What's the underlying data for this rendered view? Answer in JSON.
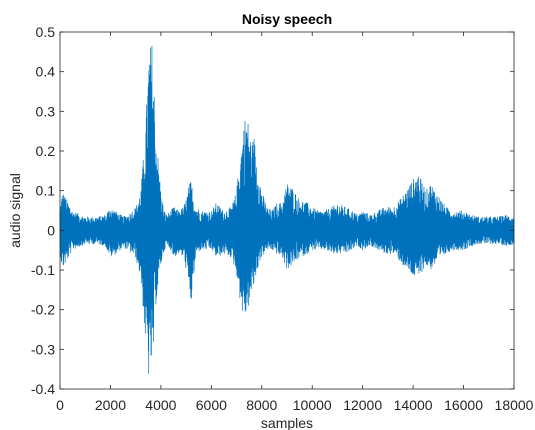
{
  "chart_data": {
    "type": "line",
    "title": "Noisy speech",
    "xlabel": "samples",
    "ylabel": "audio signal",
    "xlim": [
      0,
      18000
    ],
    "ylim": [
      -0.4,
      0.5
    ],
    "grid": false,
    "x_ticks": [
      0,
      2000,
      4000,
      6000,
      8000,
      10000,
      12000,
      14000,
      16000,
      18000
    ],
    "x_tick_labels": [
      "0",
      "2000",
      "4000",
      "6000",
      "8000",
      "10000",
      "12000",
      "14000",
      "16000",
      "18000"
    ],
    "y_ticks": [
      -0.4,
      -0.3,
      -0.2,
      -0.1,
      0,
      0.1,
      0.2,
      0.3,
      0.4,
      0.5
    ],
    "y_tick_labels": [
      "-0.4",
      "-0.3",
      "-0.2",
      "-0.1",
      "0",
      "0.1",
      "0.2",
      "0.3",
      "0.4",
      "0.5"
    ],
    "series_color": "#0072BD",
    "envelope": {
      "x": [
        0,
        100,
        500,
        1000,
        1500,
        1800,
        2000,
        2200,
        2500,
        2700,
        3000,
        3200,
        3300,
        3400,
        3500,
        3550,
        3600,
        3650,
        3700,
        3750,
        3800,
        3900,
        4000,
        4100,
        4200,
        4400,
        4500,
        4700,
        4900,
        5000,
        5100,
        5200,
        5300,
        5400,
        5600,
        5800,
        6000,
        6200,
        6500,
        6800,
        7000,
        7100,
        7200,
        7300,
        7400,
        7500,
        7600,
        7700,
        7800,
        7900,
        8000,
        8100,
        8200,
        8400,
        8600,
        8800,
        9000,
        9200,
        9500,
        9800,
        10000,
        10200,
        10500,
        10800,
        11000,
        11300,
        11600,
        11800,
        12000,
        12300,
        12600,
        12900,
        13200,
        13500,
        13700,
        13900,
        14000,
        14100,
        14200,
        14300,
        14400,
        14500,
        14700,
        15000,
        15300,
        15600,
        16000,
        16300,
        16600,
        17000,
        17400,
        17700,
        18000
      ],
      "upper": [
        0.06,
        0.1,
        0.05,
        0.035,
        0.035,
        0.04,
        0.06,
        0.05,
        0.035,
        0.04,
        0.06,
        0.1,
        0.18,
        0.27,
        0.42,
        0.49,
        0.46,
        0.48,
        0.42,
        0.34,
        0.25,
        0.18,
        0.1,
        0.06,
        0.04,
        0.05,
        0.06,
        0.05,
        0.06,
        0.08,
        0.11,
        0.13,
        0.08,
        0.06,
        0.05,
        0.05,
        0.05,
        0.07,
        0.05,
        0.06,
        0.1,
        0.17,
        0.22,
        0.28,
        0.3,
        0.26,
        0.22,
        0.24,
        0.18,
        0.14,
        0.1,
        0.08,
        0.06,
        0.05,
        0.07,
        0.07,
        0.12,
        0.11,
        0.08,
        0.07,
        0.06,
        0.05,
        0.05,
        0.06,
        0.07,
        0.06,
        0.05,
        0.04,
        0.05,
        0.04,
        0.05,
        0.06,
        0.06,
        0.08,
        0.1,
        0.12,
        0.13,
        0.14,
        0.15,
        0.13,
        0.12,
        0.1,
        0.12,
        0.09,
        0.06,
        0.05,
        0.05,
        0.04,
        0.035,
        0.035,
        0.035,
        0.04,
        0.035
      ],
      "lower": [
        -0.06,
        -0.1,
        -0.05,
        -0.035,
        -0.035,
        -0.04,
        -0.07,
        -0.06,
        -0.045,
        -0.05,
        -0.07,
        -0.12,
        -0.2,
        -0.3,
        -0.36,
        -0.4,
        -0.34,
        -0.38,
        -0.33,
        -0.26,
        -0.19,
        -0.14,
        -0.09,
        -0.06,
        -0.04,
        -0.05,
        -0.07,
        -0.06,
        -0.07,
        -0.1,
        -0.15,
        -0.19,
        -0.12,
        -0.06,
        -0.05,
        -0.05,
        -0.05,
        -0.07,
        -0.06,
        -0.07,
        -0.11,
        -0.16,
        -0.2,
        -0.23,
        -0.21,
        -0.19,
        -0.16,
        -0.14,
        -0.11,
        -0.08,
        -0.07,
        -0.06,
        -0.05,
        -0.05,
        -0.06,
        -0.07,
        -0.1,
        -0.09,
        -0.07,
        -0.06,
        -0.05,
        -0.05,
        -0.05,
        -0.06,
        -0.06,
        -0.06,
        -0.05,
        -0.04,
        -0.05,
        -0.04,
        -0.05,
        -0.06,
        -0.06,
        -0.08,
        -0.1,
        -0.11,
        -0.12,
        -0.12,
        -0.13,
        -0.11,
        -0.1,
        -0.09,
        -0.1,
        -0.08,
        -0.06,
        -0.05,
        -0.05,
        -0.04,
        -0.035,
        -0.035,
        -0.035,
        -0.04,
        -0.035
      ]
    }
  }
}
